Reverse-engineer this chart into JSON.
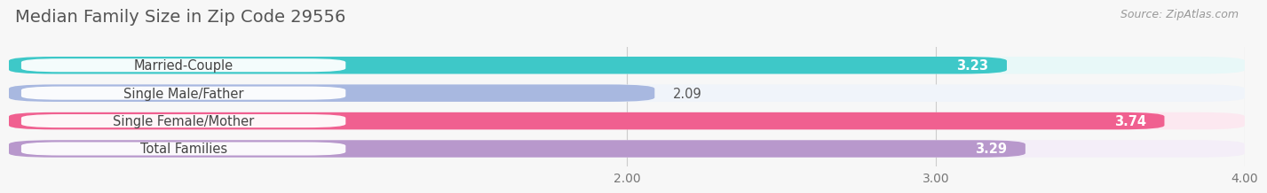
{
  "title": "Median Family Size in Zip Code 29556",
  "source": "Source: ZipAtlas.com",
  "categories": [
    "Married-Couple",
    "Single Male/Father",
    "Single Female/Mother",
    "Total Families"
  ],
  "values": [
    3.23,
    2.09,
    3.74,
    3.29
  ],
  "bar_colors": [
    "#3ec8c8",
    "#a8b8e0",
    "#f06090",
    "#b898cc"
  ],
  "bar_bg_colors": [
    "#e8f8f8",
    "#f0f4fa",
    "#fce8f0",
    "#f4eef8"
  ],
  "xlim": [
    0.0,
    4.0
  ],
  "xticks": [
    2.0,
    3.0,
    4.0
  ],
  "xtick_labels": [
    "2.00",
    "3.00",
    "4.00"
  ],
  "label_fontsize": 10.5,
  "value_fontsize": 10.5,
  "title_fontsize": 14,
  "background_color": "#f7f7f7",
  "bar_height": 0.62,
  "value_outside_color": "#555555",
  "value_outside_threshold": 2.5
}
